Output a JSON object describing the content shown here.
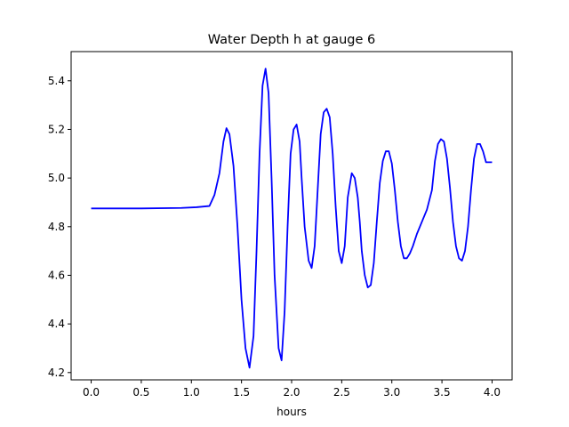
{
  "chart_data": {
    "type": "line",
    "title": "Water Depth h at gauge 6",
    "xlabel": "hours",
    "ylabel": "",
    "xlim": [
      -0.2,
      4.2
    ],
    "ylim": [
      4.17,
      5.52
    ],
    "xticks": [
      0.0,
      0.5,
      1.0,
      1.5,
      2.0,
      2.5,
      3.0,
      3.5,
      4.0
    ],
    "xtick_labels": [
      "0.0",
      "0.5",
      "1.0",
      "1.5",
      "2.0",
      "2.5",
      "3.0",
      "3.5",
      "4.0"
    ],
    "yticks": [
      4.2,
      4.4,
      4.6,
      4.8,
      5.0,
      5.2,
      5.4
    ],
    "ytick_labels": [
      "4.2",
      "4.4",
      "4.6",
      "4.8",
      "5.0",
      "5.2",
      "5.4"
    ],
    "grid": false,
    "series": [
      {
        "color": "#0000ff",
        "x": [
          0.0,
          0.5,
          0.9,
          1.05,
          1.18,
          1.23,
          1.28,
          1.32,
          1.35,
          1.38,
          1.42,
          1.46,
          1.5,
          1.54,
          1.58,
          1.62,
          1.65,
          1.68,
          1.71,
          1.74,
          1.77,
          1.8,
          1.83,
          1.87,
          1.9,
          1.93,
          1.96,
          1.99,
          2.02,
          2.05,
          2.08,
          2.1,
          2.13,
          2.17,
          2.2,
          2.23,
          2.26,
          2.29,
          2.32,
          2.35,
          2.38,
          2.41,
          2.44,
          2.47,
          2.5,
          2.53,
          2.56,
          2.6,
          2.63,
          2.66,
          2.68,
          2.7,
          2.73,
          2.76,
          2.79,
          2.82,
          2.85,
          2.88,
          2.91,
          2.94,
          2.97,
          3.0,
          3.03,
          3.06,
          3.09,
          3.12,
          3.15,
          3.18,
          3.21,
          3.25,
          3.3,
          3.35,
          3.4,
          3.43,
          3.46,
          3.49,
          3.52,
          3.55,
          3.58,
          3.61,
          3.64,
          3.67,
          3.7,
          3.73,
          3.76,
          3.79,
          3.82,
          3.85,
          3.88,
          3.91,
          3.94,
          3.97,
          4.0
        ],
        "y": [
          4.875,
          4.875,
          4.877,
          4.88,
          4.885,
          4.93,
          5.02,
          5.15,
          5.205,
          5.18,
          5.05,
          4.8,
          4.5,
          4.3,
          4.22,
          4.35,
          4.7,
          5.1,
          5.38,
          5.45,
          5.35,
          5.0,
          4.6,
          4.3,
          4.25,
          4.45,
          4.8,
          5.1,
          5.2,
          5.22,
          5.15,
          5.0,
          4.8,
          4.66,
          4.63,
          4.72,
          4.95,
          5.18,
          5.27,
          5.285,
          5.25,
          5.1,
          4.88,
          4.7,
          4.65,
          4.72,
          4.92,
          5.02,
          5.0,
          4.92,
          4.82,
          4.7,
          4.6,
          4.55,
          4.56,
          4.65,
          4.82,
          4.98,
          5.07,
          5.11,
          5.11,
          5.06,
          4.95,
          4.82,
          4.72,
          4.67,
          4.67,
          4.69,
          4.72,
          4.77,
          4.82,
          4.87,
          4.95,
          5.07,
          5.14,
          5.16,
          5.15,
          5.08,
          4.96,
          4.82,
          4.72,
          4.67,
          4.66,
          4.7,
          4.8,
          4.95,
          5.08,
          5.14,
          5.14,
          5.11,
          5.065,
          5.065,
          5.065
        ]
      }
    ]
  }
}
